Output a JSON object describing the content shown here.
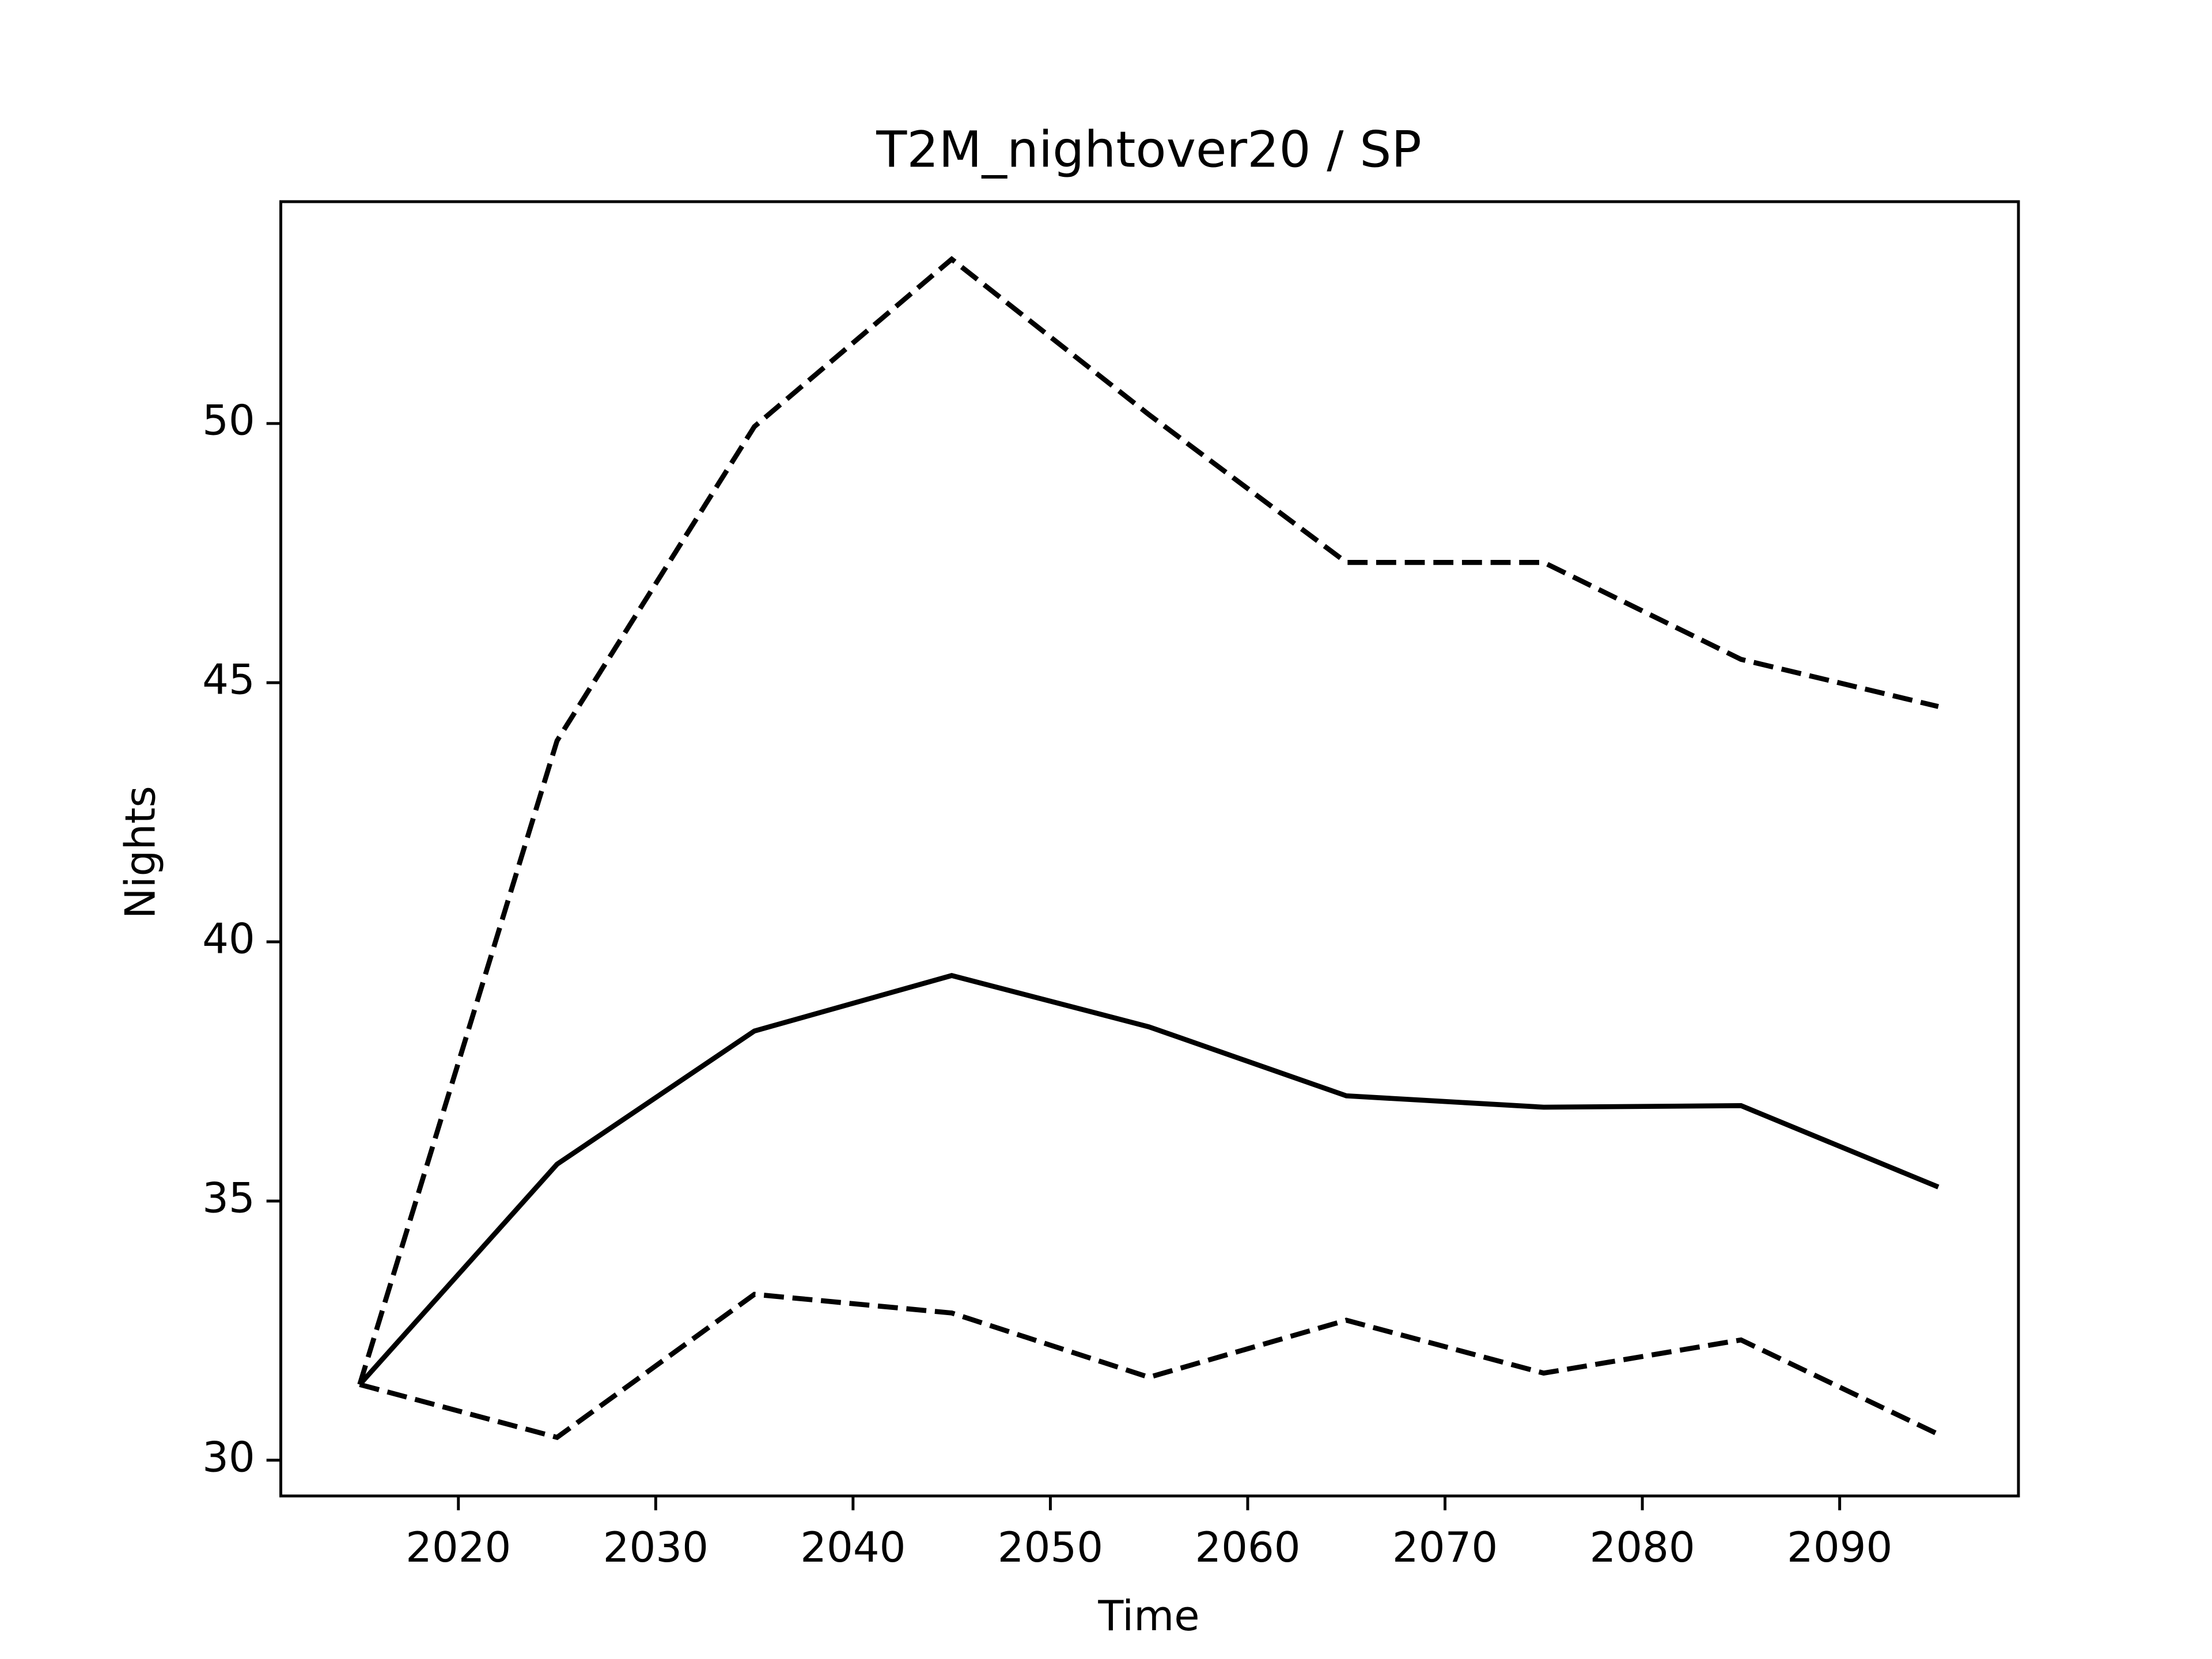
{
  "chart_data": {
    "type": "line",
    "title": "T2M_nightover20 / SP",
    "xlabel": "Time",
    "ylabel": "Nights",
    "x": [
      2015,
      2025,
      2035,
      2045,
      2055,
      2065,
      2075,
      2085,
      2095
    ],
    "series": [
      {
        "color": "#000000",
        "linestyle": "solid",
        "values": [
          31.46,
          35.71,
          38.28,
          39.35,
          38.36,
          37.03,
          36.81,
          36.84,
          35.27
        ]
      },
      {
        "color": "#000000",
        "linestyle": "dashed",
        "values": [
          31.46,
          43.88,
          49.94,
          53.17,
          50.17,
          47.32,
          47.32,
          45.45,
          44.54
        ]
      },
      {
        "color": "#000000",
        "linestyle": "dashed",
        "values": [
          31.46,
          30.44,
          33.2,
          32.84,
          31.6,
          32.7,
          31.68,
          32.32,
          30.5
        ]
      }
    ],
    "xlim": [
      2011.0,
      2099.06
    ],
    "ylim": [
      29.31,
      54.28
    ],
    "xticks": [
      2020,
      2030,
      2040,
      2050,
      2060,
      2070,
      2080,
      2090
    ],
    "yticks": [
      30,
      35,
      40,
      45,
      50
    ],
    "grid": false
  }
}
